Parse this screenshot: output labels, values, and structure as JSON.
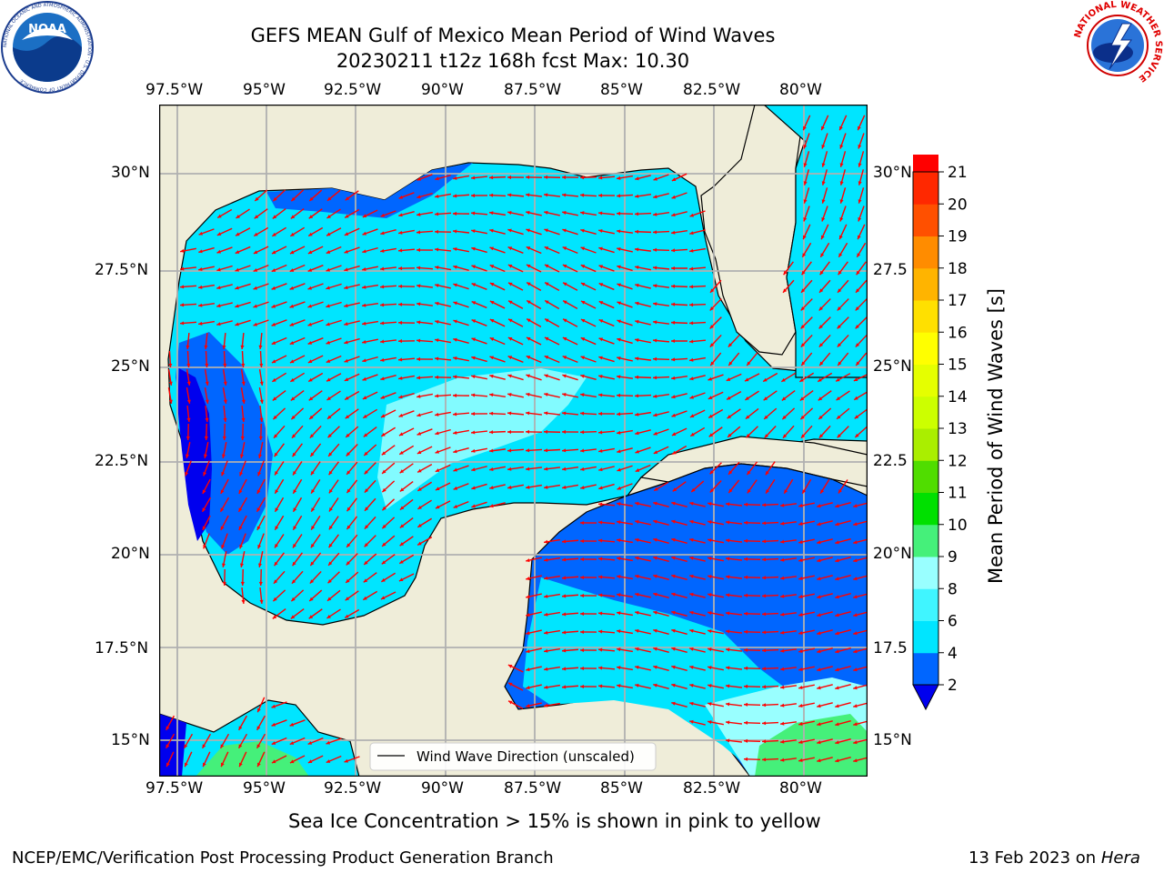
{
  "header": {
    "title_line1": "GEFS MEAN Gulf of Mexico Mean Period of Wind Waves",
    "title_line2": "20230211 t12z 168h fcst   Max: 10.30"
  },
  "logos": {
    "noaa": {
      "icon": "noaa-logo-icon",
      "emblem_text": "NOAA",
      "ring_text": "NATIONAL OCEANIC AND ATMOSPHERIC ADMINISTRATION · U.S. DEPARTMENT OF COMMERCE"
    },
    "nws": {
      "icon": "nws-logo-icon",
      "ring_text": "NATIONAL WEATHER SERVICE"
    }
  },
  "map": {
    "lon_ticks": [
      "97.5°W",
      "95°W",
      "92.5°W",
      "90°W",
      "87.5°W",
      "85°W",
      "82.5°W",
      "80°W"
    ],
    "lat_ticks_left": [
      "30°N",
      "27.5°N",
      "25°N",
      "22.5°N",
      "20°N",
      "17.5°N",
      "15°N"
    ],
    "lat_ticks_right": [
      "30°N",
      "27.5",
      "25°N",
      "22.5",
      "20°N",
      "17.5",
      "15°N"
    ],
    "legend_label": "Wind Wave Direction (unscaled)",
    "colors": {
      "land": "#efedd9",
      "coast": "#000000",
      "grid": "#b0b0b0",
      "arrow": "#ff0000"
    }
  },
  "colorbar": {
    "label": "Mean Period of Wind Waves [s]",
    "tick_labels": [
      "2",
      "4",
      "6",
      "8",
      "9",
      "10",
      "11",
      "12",
      "13",
      "14",
      "15",
      "16",
      "17",
      "18",
      "19",
      "20",
      "21"
    ],
    "colors": [
      "#0066ff",
      "#00e5ff",
      "#40f5ff",
      "#99ffff",
      "#45f07a",
      "#00e000",
      "#50dd00",
      "#aaee00",
      "#ccff00",
      "#e5ff00",
      "#ffff00",
      "#ffe000",
      "#ffb400",
      "#ff8c00",
      "#ff5000",
      "#ff2800",
      "#ff0000"
    ],
    "extend_color": "#0000ee"
  },
  "captions": {
    "sea_ice": "Sea Ice Concentration > 15% is shown in pink to yellow",
    "credit": "NCEP/EMC/Verification Post Processing Product Generation Branch",
    "date_prefix": "13 Feb 2023 on ",
    "date_machine": "Hera"
  }
}
